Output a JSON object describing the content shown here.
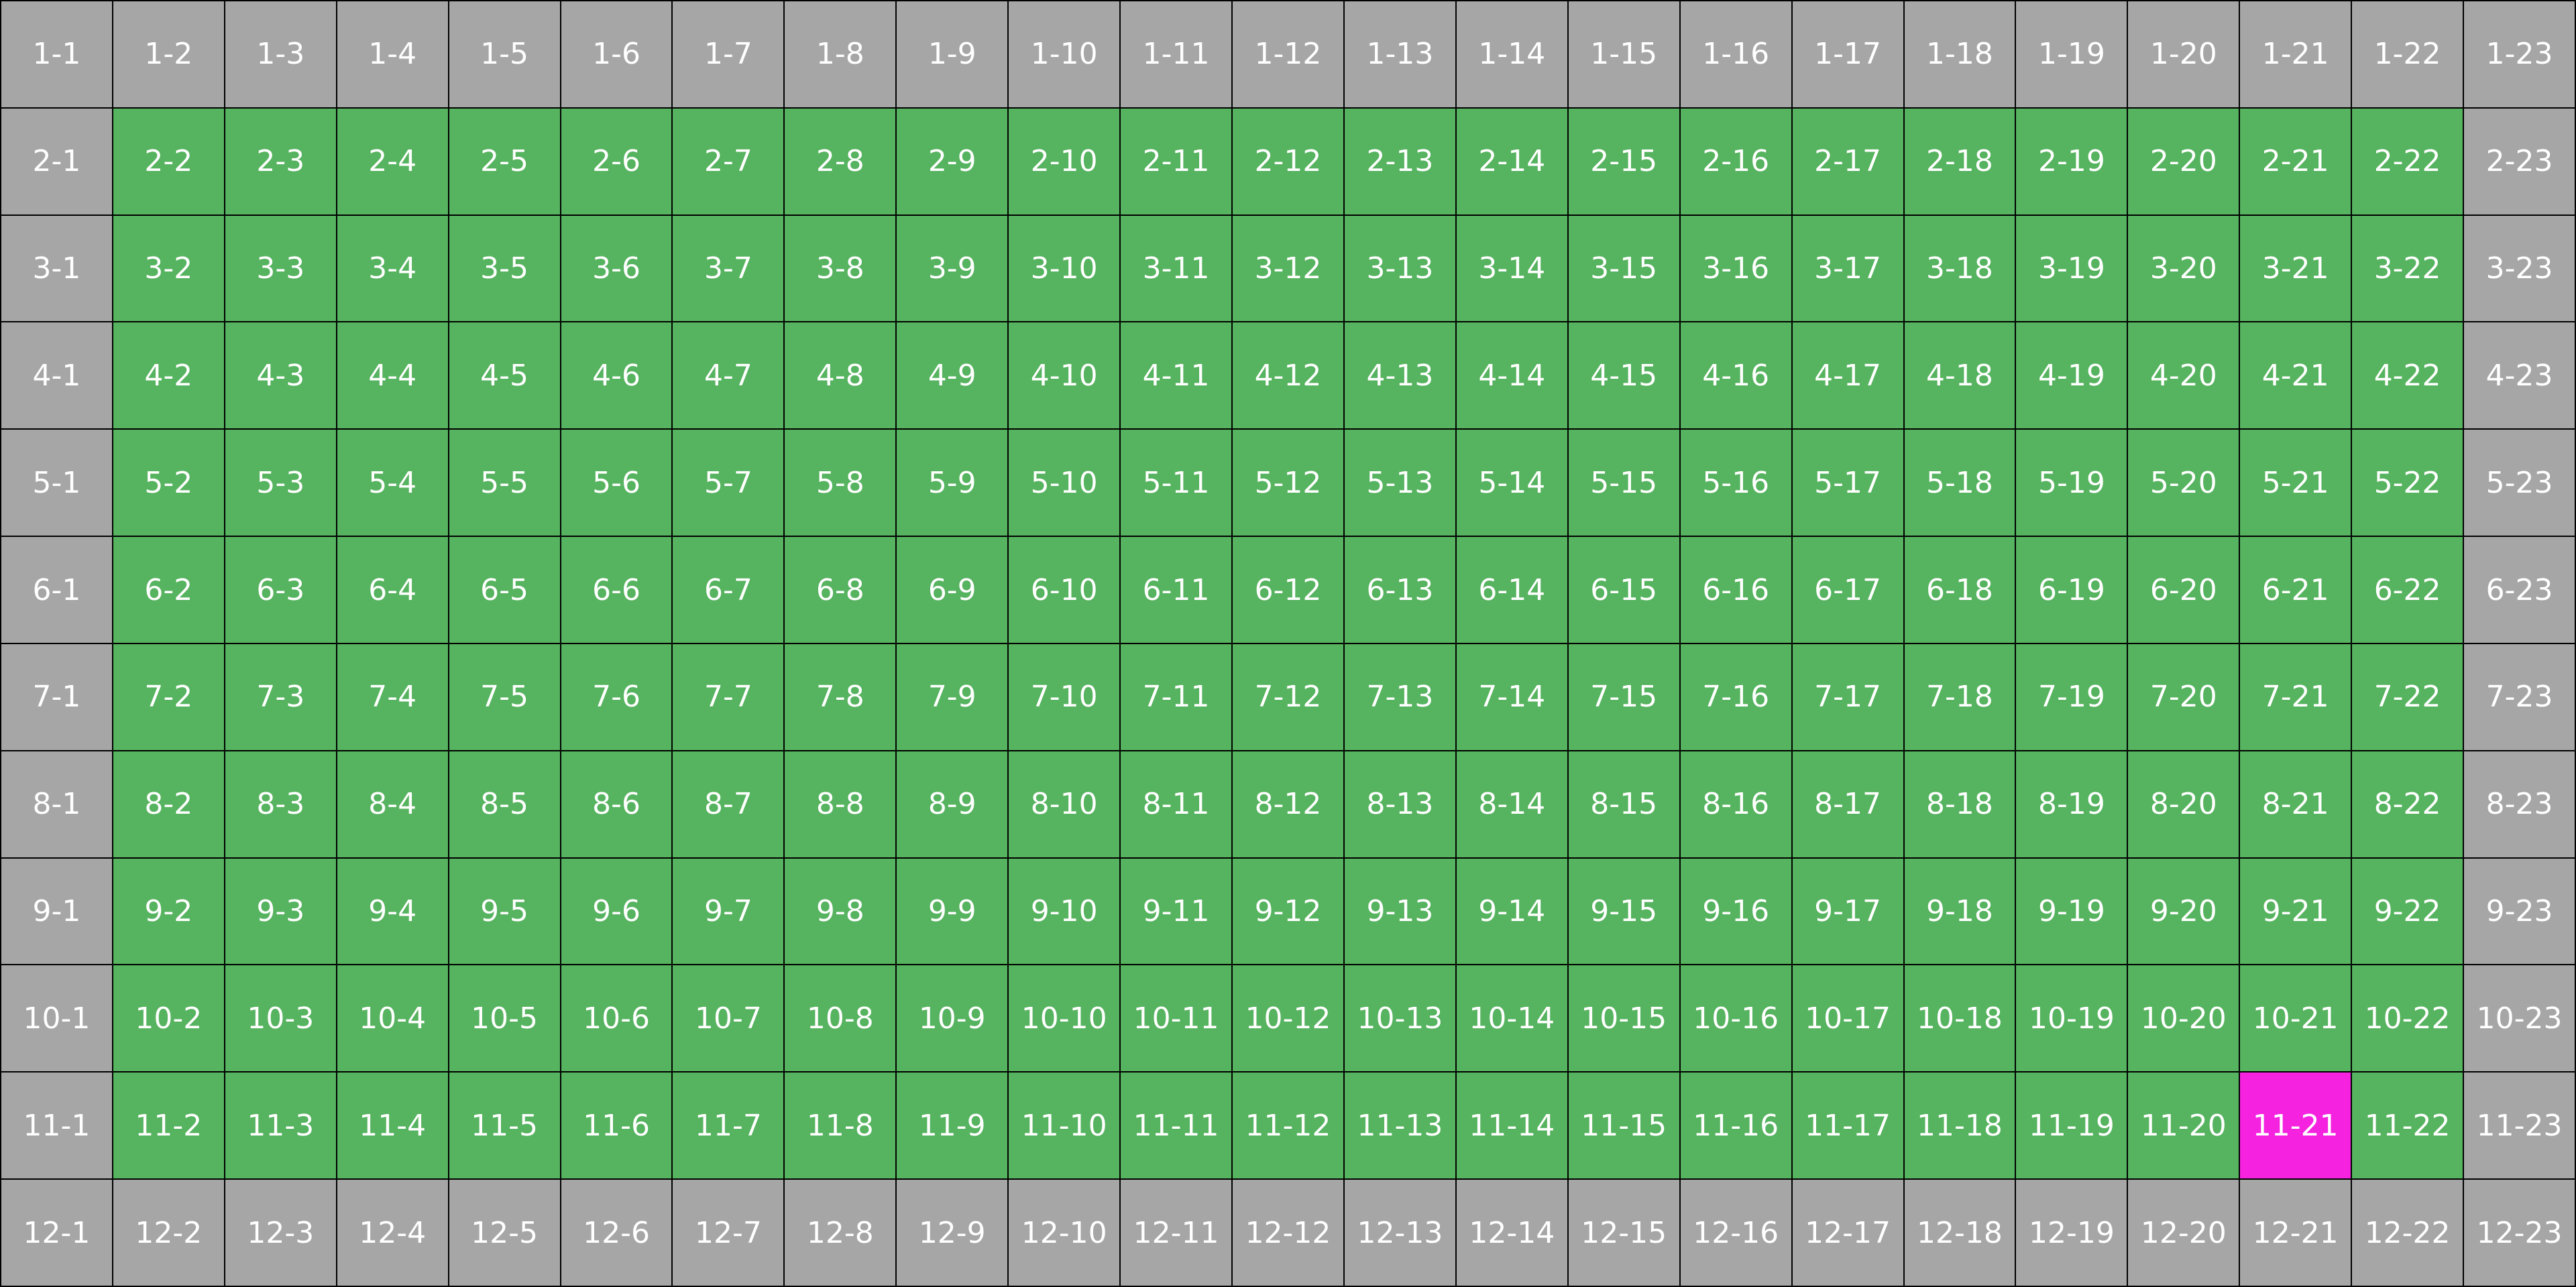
{
  "grid": {
    "rows": 12,
    "cols": 23,
    "selected": "11-21",
    "colors": {
      "edge": "#a6a6a6",
      "inner": "#56b35f",
      "selected": "#f522e0",
      "label": "#ffffff"
    },
    "cells": [
      [
        "1-1",
        "1-2",
        "1-3",
        "1-4",
        "1-5",
        "1-6",
        "1-7",
        "1-8",
        "1-9",
        "1-10",
        "1-11",
        "1-12",
        "1-13",
        "1-14",
        "1-15",
        "1-16",
        "1-17",
        "1-18",
        "1-19",
        "1-20",
        "1-21",
        "1-22",
        "1-23"
      ],
      [
        "2-1",
        "2-2",
        "2-3",
        "2-4",
        "2-5",
        "2-6",
        "2-7",
        "2-8",
        "2-9",
        "2-10",
        "2-11",
        "2-12",
        "2-13",
        "2-14",
        "2-15",
        "2-16",
        "2-17",
        "2-18",
        "2-19",
        "2-20",
        "2-21",
        "2-22",
        "2-23"
      ],
      [
        "3-1",
        "3-2",
        "3-3",
        "3-4",
        "3-5",
        "3-6",
        "3-7",
        "3-8",
        "3-9",
        "3-10",
        "3-11",
        "3-12",
        "3-13",
        "3-14",
        "3-15",
        "3-16",
        "3-17",
        "3-18",
        "3-19",
        "3-20",
        "3-21",
        "3-22",
        "3-23"
      ],
      [
        "4-1",
        "4-2",
        "4-3",
        "4-4",
        "4-5",
        "4-6",
        "4-7",
        "4-8",
        "4-9",
        "4-10",
        "4-11",
        "4-12",
        "4-13",
        "4-14",
        "4-15",
        "4-16",
        "4-17",
        "4-18",
        "4-19",
        "4-20",
        "4-21",
        "4-22",
        "4-23"
      ],
      [
        "5-1",
        "5-2",
        "5-3",
        "5-4",
        "5-5",
        "5-6",
        "5-7",
        "5-8",
        "5-9",
        "5-10",
        "5-11",
        "5-12",
        "5-13",
        "5-14",
        "5-15",
        "5-16",
        "5-17",
        "5-18",
        "5-19",
        "5-20",
        "5-21",
        "5-22",
        "5-23"
      ],
      [
        "6-1",
        "6-2",
        "6-3",
        "6-4",
        "6-5",
        "6-6",
        "6-7",
        "6-8",
        "6-9",
        "6-10",
        "6-11",
        "6-12",
        "6-13",
        "6-14",
        "6-15",
        "6-16",
        "6-17",
        "6-18",
        "6-19",
        "6-20",
        "6-21",
        "6-22",
        "6-23"
      ],
      [
        "7-1",
        "7-2",
        "7-3",
        "7-4",
        "7-5",
        "7-6",
        "7-7",
        "7-8",
        "7-9",
        "7-10",
        "7-11",
        "7-12",
        "7-13",
        "7-14",
        "7-15",
        "7-16",
        "7-17",
        "7-18",
        "7-19",
        "7-20",
        "7-21",
        "7-22",
        "7-23"
      ],
      [
        "8-1",
        "8-2",
        "8-3",
        "8-4",
        "8-5",
        "8-6",
        "8-7",
        "8-8",
        "8-9",
        "8-10",
        "8-11",
        "8-12",
        "8-13",
        "8-14",
        "8-15",
        "8-16",
        "8-17",
        "8-18",
        "8-19",
        "8-20",
        "8-21",
        "8-22",
        "8-23"
      ],
      [
        "9-1",
        "9-2",
        "9-3",
        "9-4",
        "9-5",
        "9-6",
        "9-7",
        "9-8",
        "9-9",
        "9-10",
        "9-11",
        "9-12",
        "9-13",
        "9-14",
        "9-15",
        "9-16",
        "9-17",
        "9-18",
        "9-19",
        "9-20",
        "9-21",
        "9-22",
        "9-23"
      ],
      [
        "10-1",
        "10-2",
        "10-3",
        "10-4",
        "10-5",
        "10-6",
        "10-7",
        "10-8",
        "10-9",
        "10-10",
        "10-11",
        "10-12",
        "10-13",
        "10-14",
        "10-15",
        "10-16",
        "10-17",
        "10-18",
        "10-19",
        "10-20",
        "10-21",
        "10-22",
        "10-23"
      ],
      [
        "11-1",
        "11-2",
        "11-3",
        "11-4",
        "11-5",
        "11-6",
        "11-7",
        "11-8",
        "11-9",
        "11-10",
        "11-11",
        "11-12",
        "11-13",
        "11-14",
        "11-15",
        "11-16",
        "11-17",
        "11-18",
        "11-19",
        "11-20",
        "11-21",
        "11-22",
        "11-23"
      ],
      [
        "12-1",
        "12-2",
        "12-3",
        "12-4",
        "12-5",
        "12-6",
        "12-7",
        "12-8",
        "12-9",
        "12-10",
        "12-11",
        "12-12",
        "12-13",
        "12-14",
        "12-15",
        "12-16",
        "12-17",
        "12-18",
        "12-19",
        "12-20",
        "12-21",
        "12-22",
        "12-23"
      ]
    ]
  }
}
